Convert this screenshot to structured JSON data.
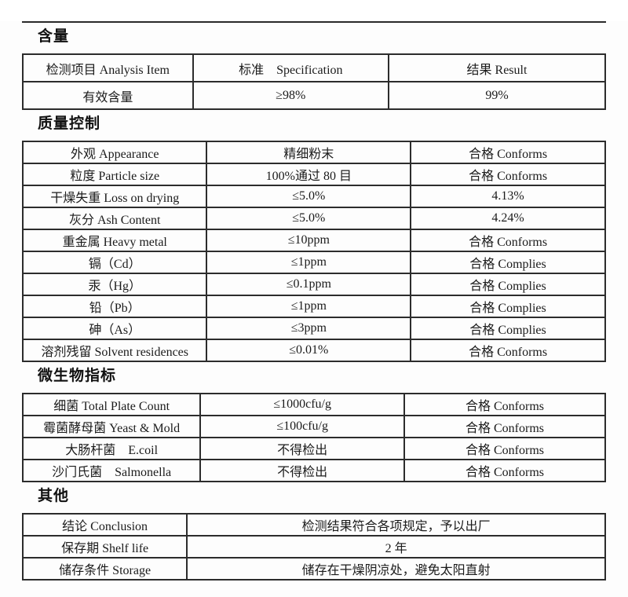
{
  "document": {
    "sections": [
      {
        "heading": "含量",
        "rows": [
          [
            "检测项目 Analysis Item",
            "标准　Specification",
            "结果 Result"
          ],
          [
            "有效含量",
            "≥98%",
            "99%"
          ]
        ]
      },
      {
        "heading": "质量控制",
        "rows": [
          [
            "外观 Appearance",
            "精细粉末",
            "合格 Conforms"
          ],
          [
            "粒度 Particle size",
            "100%通过 80 目",
            "合格 Conforms"
          ],
          [
            "干燥失重 Loss on drying",
            "≤5.0%",
            "4.13%"
          ],
          [
            "灰分 Ash Content",
            "≤5.0%",
            "4.24%"
          ],
          [
            "重金属 Heavy metal",
            "≤10ppm",
            "合格 Conforms"
          ],
          [
            "镉（Cd）",
            "≤1ppm",
            "合格 Complies"
          ],
          [
            "汞（Hg）",
            "≤0.1ppm",
            "合格 Complies"
          ],
          [
            "铅（Pb）",
            "≤1ppm",
            "合格 Complies"
          ],
          [
            "砷（As）",
            "≤3ppm",
            "合格 Complies"
          ],
          [
            "溶剂残留 Solvent residences",
            "≤0.01%",
            "合格 Conforms"
          ]
        ]
      },
      {
        "heading": "微生物指标",
        "rows": [
          [
            "细菌 Total Plate Count",
            "≤1000cfu/g",
            "合格 Conforms"
          ],
          [
            "霉菌酵母菌 Yeast & Mold",
            "≤100cfu/g",
            "合格 Conforms"
          ],
          [
            "大肠杆菌　E.coil",
            "不得检出",
            "合格 Conforms"
          ],
          [
            "沙门氏菌　Salmonella",
            "不得检出",
            "合格 Conforms"
          ]
        ]
      },
      {
        "heading": "其他",
        "rows": [
          [
            "结论 Conclusion",
            "检测结果符合各项规定，予以出厂"
          ],
          [
            "保存期 Shelf life",
            "2 年"
          ],
          [
            "储存条件 Storage",
            "储存在干燥阴凉处，避免太阳直射"
          ]
        ]
      }
    ]
  }
}
